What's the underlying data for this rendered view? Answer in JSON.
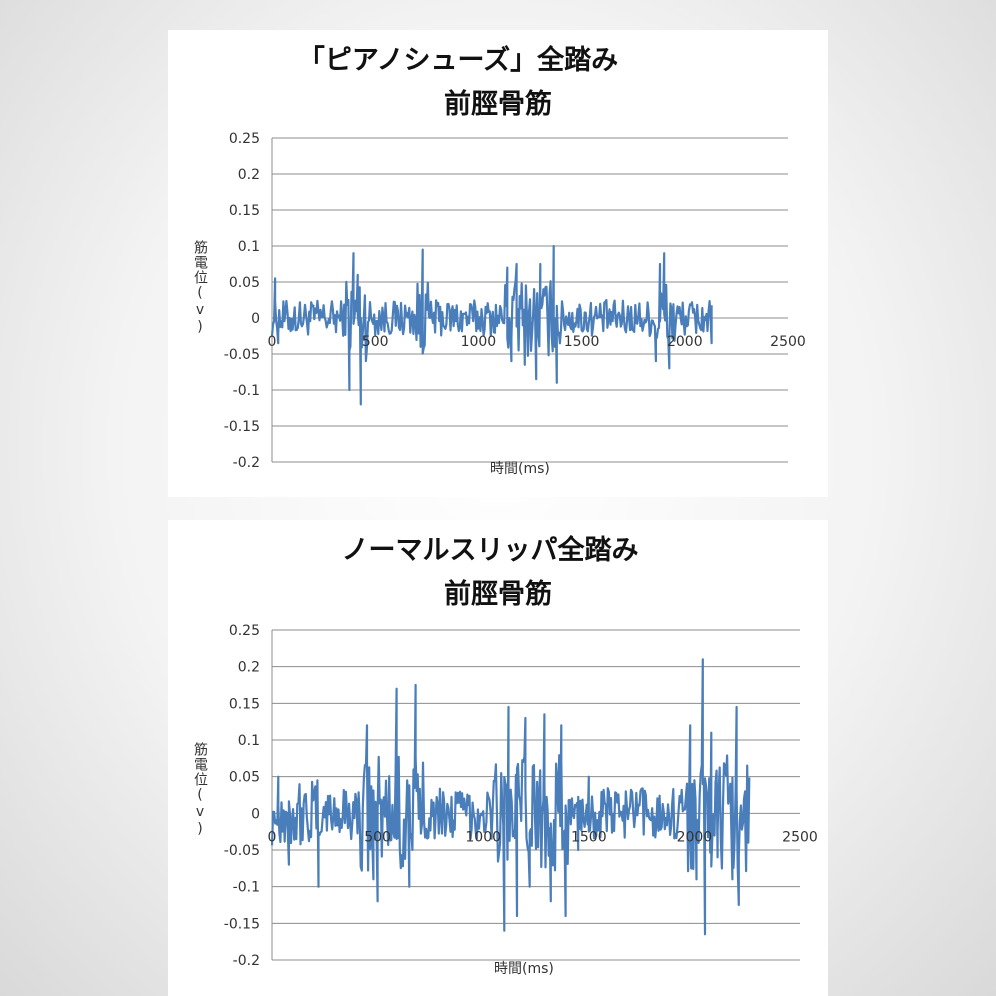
{
  "chart_data": [
    {
      "type": "line",
      "title_line1": "「ピアノシューズ」全踏み",
      "title_line2": "前脛骨筋",
      "xlabel": "時間(ms)",
      "ylabel": "筋電位(v)",
      "xlim": [
        0,
        2500
      ],
      "ylim": [
        -0.2,
        0.25
      ],
      "xticks": [
        "0",
        "500",
        "1000",
        "1500",
        "2000",
        "2500"
      ],
      "yticks": [
        "0.25",
        "0.2",
        "0.15",
        "0.1",
        "0.05",
        "0",
        "-0.05",
        "-0.1",
        "-0.15",
        "-0.2"
      ],
      "grid": "horizontal",
      "color": "#4a7ebb",
      "series": [
        {
          "x_end": 2130,
          "noise_amplitude": 0.025,
          "bursts": [
            {
              "start": 360,
              "end": 460,
              "amp": 0.06
            },
            {
              "start": 700,
              "end": 760,
              "amp": 0.05
            },
            {
              "start": 1130,
              "end": 1400,
              "amp": 0.055
            },
            {
              "start": 1840,
              "end": 1960,
              "amp": 0.055
            }
          ],
          "spikes": [
            {
              "x": 15,
              "y": 0.055
            },
            {
              "x": 30,
              "y": -0.035
            },
            {
              "x": 375,
              "y": -0.1
            },
            {
              "x": 395,
              "y": 0.09
            },
            {
              "x": 430,
              "y": -0.12
            },
            {
              "x": 415,
              "y": 0.06
            },
            {
              "x": 730,
              "y": 0.095
            },
            {
              "x": 720,
              "y": -0.04
            },
            {
              "x": 1140,
              "y": 0.07
            },
            {
              "x": 1160,
              "y": -0.06
            },
            {
              "x": 1185,
              "y": 0.075
            },
            {
              "x": 1225,
              "y": -0.065
            },
            {
              "x": 1280,
              "y": -0.085
            },
            {
              "x": 1300,
              "y": 0.075
            },
            {
              "x": 1365,
              "y": 0.1
            },
            {
              "x": 1380,
              "y": -0.09
            },
            {
              "x": 1860,
              "y": -0.06
            },
            {
              "x": 1880,
              "y": 0.075
            },
            {
              "x": 1900,
              "y": 0.09
            },
            {
              "x": 1925,
              "y": -0.07
            },
            {
              "x": 2130,
              "y": -0.035
            }
          ]
        }
      ]
    },
    {
      "type": "line",
      "title_line1": "ノーマルスリッパ全踏み",
      "title_line2": "前脛骨筋",
      "xlabel": "時間(ms)",
      "ylabel": "筋電位(v)",
      "xlim": [
        0,
        2500
      ],
      "ylim": [
        -0.2,
        0.25
      ],
      "xticks": [
        "0",
        "500",
        "1000",
        "1500",
        "2000",
        "2500"
      ],
      "yticks": [
        "0.25",
        "0.2",
        "0.15",
        "0.1",
        "0.05",
        "0",
        "-0.05",
        "-0.1",
        "-0.15",
        "-0.2"
      ],
      "grid": "horizontal",
      "color": "#4a7ebb",
      "series": [
        {
          "x_end": 2260,
          "noise_amplitude": 0.035,
          "bursts": [
            {
              "start": 0,
              "end": 230,
              "amp": 0.045
            },
            {
              "start": 420,
              "end": 720,
              "amp": 0.08
            },
            {
              "start": 1050,
              "end": 1400,
              "amp": 0.08
            },
            {
              "start": 1960,
              "end": 2260,
              "amp": 0.08
            }
          ],
          "spikes": [
            {
              "x": 30,
              "y": 0.05
            },
            {
              "x": 80,
              "y": -0.07
            },
            {
              "x": 220,
              "y": -0.1
            },
            {
              "x": 450,
              "y": 0.12
            },
            {
              "x": 480,
              "y": -0.09
            },
            {
              "x": 500,
              "y": -0.12
            },
            {
              "x": 590,
              "y": 0.17
            },
            {
              "x": 650,
              "y": -0.1
            },
            {
              "x": 680,
              "y": 0.175
            },
            {
              "x": 1100,
              "y": -0.16
            },
            {
              "x": 1120,
              "y": 0.145
            },
            {
              "x": 1160,
              "y": -0.14
            },
            {
              "x": 1200,
              "y": 0.13
            },
            {
              "x": 1220,
              "y": -0.1
            },
            {
              "x": 1290,
              "y": 0.135
            },
            {
              "x": 1320,
              "y": -0.12
            },
            {
              "x": 1370,
              "y": 0.12
            },
            {
              "x": 1390,
              "y": -0.14
            },
            {
              "x": 1450,
              "y": -0.05
            },
            {
              "x": 1500,
              "y": 0.05
            },
            {
              "x": 1980,
              "y": 0.12
            },
            {
              "x": 2010,
              "y": -0.09
            },
            {
              "x": 2040,
              "y": 0.21
            },
            {
              "x": 2050,
              "y": -0.165
            },
            {
              "x": 2080,
              "y": 0.11
            },
            {
              "x": 2110,
              "y": -0.06
            },
            {
              "x": 2180,
              "y": -0.09
            },
            {
              "x": 2200,
              "y": 0.145
            },
            {
              "x": 2210,
              "y": -0.125
            },
            {
              "x": 2240,
              "y": 0.03
            }
          ]
        }
      ]
    }
  ]
}
